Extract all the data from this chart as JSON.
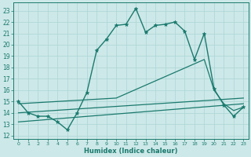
{
  "xlabel": "Humidex (Indice chaleur)",
  "xlim": [
    -0.5,
    23.5
  ],
  "ylim": [
    11.7,
    23.7
  ],
  "yticks": [
    12,
    13,
    14,
    15,
    16,
    17,
    18,
    19,
    20,
    21,
    22,
    23
  ],
  "xticks": [
    0,
    1,
    2,
    3,
    4,
    5,
    6,
    7,
    8,
    9,
    10,
    11,
    12,
    13,
    14,
    15,
    16,
    17,
    18,
    19,
    20,
    21,
    22,
    23
  ],
  "bg_color": "#cde8e8",
  "line_color": "#1a7a6e",
  "grid_color": "#b0d8d8",
  "lines": [
    {
      "x": [
        0,
        1,
        2,
        3,
        4,
        5,
        6,
        7,
        8,
        9,
        10,
        11,
        12,
        13,
        14,
        15,
        16,
        17,
        18,
        19,
        20,
        21,
        22,
        23
      ],
      "y": [
        15.0,
        14.0,
        13.7,
        13.7,
        13.2,
        12.5,
        14.0,
        15.8,
        19.5,
        20.5,
        21.7,
        21.8,
        23.2,
        21.1,
        21.7,
        21.8,
        22.0,
        21.2,
        18.7,
        21.0,
        16.1,
        14.7,
        13.7,
        14.5
      ],
      "marker": "*",
      "markersize": 3.5,
      "linewidth": 1.0
    },
    {
      "x": [
        0,
        23
      ],
      "y": [
        13.2,
        14.8
      ],
      "marker": null,
      "markersize": 0,
      "linewidth": 0.9
    },
    {
      "x": [
        0,
        23
      ],
      "y": [
        14.0,
        15.3
      ],
      "marker": null,
      "markersize": 0,
      "linewidth": 0.9
    },
    {
      "x": [
        0,
        10,
        19,
        20,
        21,
        22,
        23
      ],
      "y": [
        14.8,
        15.3,
        18.7,
        16.0,
        14.8,
        14.2,
        14.5
      ],
      "marker": null,
      "markersize": 0,
      "linewidth": 0.9
    }
  ]
}
